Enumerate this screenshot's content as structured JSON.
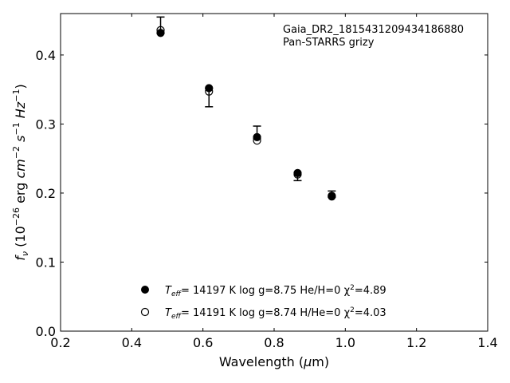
{
  "chart_data": {
    "type": "scatter",
    "title": "",
    "xlabel": "Wavelength (μm)",
    "ylabel": "f_ν (10^-26 erg cm^-2 s^-1 Hz^-1)",
    "xlim": [
      0.2,
      1.4
    ],
    "ylim": [
      0.0,
      0.46
    ],
    "x_ticks": [
      0.2,
      0.4,
      0.6,
      0.8,
      1.0,
      1.2,
      1.4
    ],
    "x_tick_labels": [
      "0.2",
      "0.4",
      "0.6",
      "0.8",
      "1.0",
      "1.2",
      "1.4"
    ],
    "y_ticks": [
      0.0,
      0.1,
      0.2,
      0.3,
      0.4
    ],
    "y_tick_labels": [
      "0.0",
      "0.1",
      "0.2",
      "0.3",
      "0.4"
    ],
    "grid": false,
    "legend_position": "bottom-center",
    "annotations": [
      "Gaia_DR2_1815431209434186880",
      "Pan-STARRS grizy"
    ],
    "observed": {
      "x": [
        0.481,
        0.617,
        0.752,
        0.866,
        0.962
      ],
      "y": [
        0.438,
        0.338,
        0.286,
        0.223,
        0.198
      ],
      "yerr_low": [
        0.007,
        0.013,
        0.007,
        0.005,
        0.004
      ],
      "yerr_high": [
        0.017,
        0.014,
        0.011,
        0.005,
        0.005
      ]
    },
    "series": [
      {
        "label_prefix": "T",
        "label_sub": "eff",
        "label_text": "= 14197 K  log g=8.75  He/H=0  χ",
        "label_chi": "=4.89",
        "marker": "filled-circle",
        "x": [
          0.481,
          0.617,
          0.752,
          0.866,
          0.962
        ],
        "y": [
          0.432,
          0.352,
          0.281,
          0.229,
          0.195
        ]
      },
      {
        "label_prefix": "T",
        "label_sub": "eff",
        "label_text": "= 14191 K  log g=8.74  H/He=0  χ",
        "label_chi": "=4.03",
        "marker": "open-circle",
        "x": [
          0.481,
          0.617,
          0.752,
          0.866,
          0.962
        ],
        "y": [
          0.436,
          0.347,
          0.276,
          0.227,
          0.196
        ]
      }
    ]
  }
}
